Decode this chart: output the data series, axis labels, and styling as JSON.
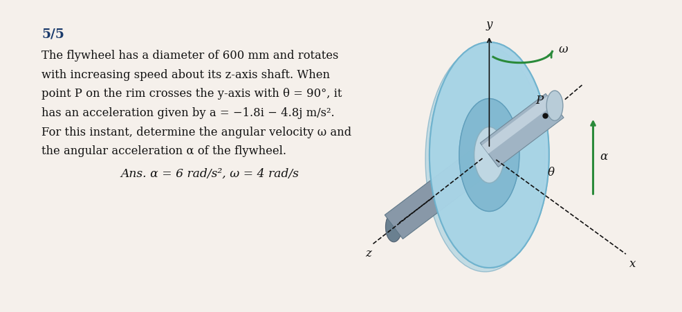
{
  "bg_color": "#f5f0eb",
  "title_number": "5/5",
  "problem_text_lines": [
    "The flywheel has a diameter of 600 mm and rotates",
    "with increasing speed about its z-axis shaft. When",
    "point P on the rim crosses the y-axis with θ = 90°, it",
    "has an acceleration given by a = −1.8i − 4.8j m/s².",
    "For this instant, determine the angular velocity ω and",
    "the angular acceleration α of the flywheel."
  ],
  "answer_line": "Ans. α = 6 rad/s², ω = 4 rad/s",
  "fontsize_body": 11.8,
  "fontsize_title": 13.5,
  "flywheel_color_outer": "#a8d4e6",
  "flywheel_color_rim": "#7ab8d0",
  "flywheel_color_inner": "#85c0d8",
  "flywheel_color_hub": "#c8dce8",
  "shaft_color_light": "#b0c4d4",
  "shaft_color_mid": "#8a9fae",
  "shaft_color_dark": "#6a8090",
  "arrow_color_green": "#2a8a3a",
  "axis_color": "#111111"
}
